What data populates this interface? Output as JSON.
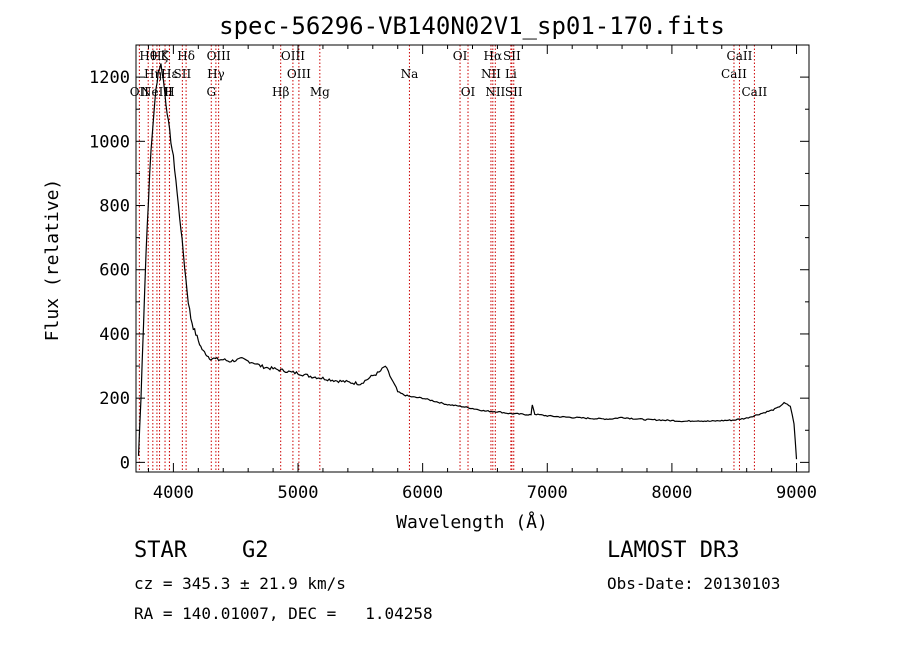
{
  "chart_data": {
    "type": "line",
    "title": "spec-56296-VB140N02V1_sp01-170.fits",
    "xlabel": "Wavelength (Å)",
    "ylabel": "Flux (relative)",
    "xlim": [
      3700,
      9100
    ],
    "ylim": [
      -30,
      1300
    ],
    "xticks": [
      4000,
      5000,
      6000,
      7000,
      8000,
      9000
    ],
    "yticks": [
      0,
      200,
      400,
      600,
      800,
      1000,
      1200
    ],
    "line_color": "#000000",
    "marker_color": "#cc0000",
    "series": [
      {
        "name": "flux",
        "x": [
          3720,
          3740,
          3760,
          3780,
          3800,
          3820,
          3840,
          3860,
          3880,
          3900,
          3920,
          3940,
          3960,
          3980,
          4000,
          4020,
          4040,
          4060,
          4080,
          4100,
          4120,
          4140,
          4160,
          4180,
          4200,
          4220,
          4240,
          4260,
          4280,
          4300,
          4350,
          4400,
          4450,
          4500,
          4550,
          4600,
          4650,
          4700,
          4750,
          4800,
          4850,
          4900,
          4950,
          5000,
          5100,
          5200,
          5300,
          5400,
          5500,
          5600,
          5650,
          5700,
          5750,
          5800,
          5850,
          5900,
          5950,
          6000,
          6100,
          6200,
          6300,
          6400,
          6500,
          6600,
          6700,
          6800,
          6870,
          6880,
          6900,
          7000,
          7100,
          7200,
          7300,
          7400,
          7500,
          7600,
          7700,
          7800,
          7900,
          8000,
          8100,
          8200,
          8300,
          8400,
          8500,
          8600,
          8700,
          8800,
          8850,
          8900,
          8950,
          8980,
          9000
        ],
        "y": [
          20,
          200,
          430,
          650,
          820,
          970,
          1070,
          1160,
          1220,
          1240,
          1190,
          1120,
          1060,
          1000,
          950,
          880,
          800,
          730,
          650,
          570,
          500,
          450,
          420,
          400,
          380,
          360,
          345,
          340,
          330,
          325,
          320,
          320,
          315,
          318,
          322,
          315,
          310,
          300,
          295,
          292,
          288,
          285,
          280,
          278,
          268,
          262,
          255,
          250,
          245,
          270,
          280,
          300,
          260,
          220,
          210,
          205,
          202,
          200,
          190,
          180,
          175,
          168,
          160,
          158,
          152,
          150,
          148,
          180,
          150,
          145,
          142,
          140,
          138,
          136,
          135,
          140,
          136,
          133,
          132,
          130,
          128,
          130,
          128,
          130,
          132,
          138,
          150,
          162,
          170,
          185,
          175,
          120,
          10
        ]
      }
    ],
    "annotations": [
      {
        "x": 3727,
        "label": "OII",
        "row": 3
      },
      {
        "x": 3798,
        "label": "Hθ",
        "row": 1
      },
      {
        "x": 3835,
        "label": "Hη",
        "row": 2
      },
      {
        "x": 3868,
        "label": "NeIII",
        "row": 3
      },
      {
        "x": 3889,
        "label": "Hζ",
        "row": 1
      },
      {
        "x": 3933,
        "label": "K",
        "row": 1
      },
      {
        "x": 3968,
        "label": "Hε",
        "row": 2
      },
      {
        "x": 3969,
        "label": "H",
        "row": 3
      },
      {
        "x": 4072,
        "label": "SII",
        "row": 2
      },
      {
        "x": 4102,
        "label": "Hδ",
        "row": 1
      },
      {
        "x": 4304,
        "label": "G",
        "row": 3
      },
      {
        "x": 4341,
        "label": "Hγ",
        "row": 2
      },
      {
        "x": 4363,
        "label": "OIII",
        "row": 1
      },
      {
        "x": 4861,
        "label": "Hβ",
        "row": 3
      },
      {
        "x": 4959,
        "label": "OIII",
        "row": 1
      },
      {
        "x": 5007,
        "label": "OIII",
        "row": 2
      },
      {
        "x": 5175,
        "label": "Mg",
        "row": 3
      },
      {
        "x": 5894,
        "label": "Na",
        "row": 2
      },
      {
        "x": 6300,
        "label": "OI",
        "row": 1
      },
      {
        "x": 6364,
        "label": "OI",
        "row": 3
      },
      {
        "x": 6548,
        "label": "NII",
        "row": 2
      },
      {
        "x": 6563,
        "label": "Hα",
        "row": 1
      },
      {
        "x": 6583,
        "label": "NII",
        "row": 3
      },
      {
        "x": 6708,
        "label": "Li",
        "row": 2
      },
      {
        "x": 6716,
        "label": "SII",
        "row": 1
      },
      {
        "x": 6731,
        "label": "SII",
        "row": 3
      },
      {
        "x": 8498,
        "label": "CaII",
        "row": 2
      },
      {
        "x": 8542,
        "label": "CaII",
        "row": 1
      },
      {
        "x": 8662,
        "label": "CaII",
        "row": 3
      }
    ]
  },
  "info": {
    "object_class": "STAR",
    "subclass": "G2",
    "survey": "LAMOST DR3",
    "redshift_text": "cz = 345.3 ± 21.9 km/s",
    "obs_date": "Obs-Date: 20130103",
    "coords": "RA = 140.01007, DEC =   1.04258"
  }
}
